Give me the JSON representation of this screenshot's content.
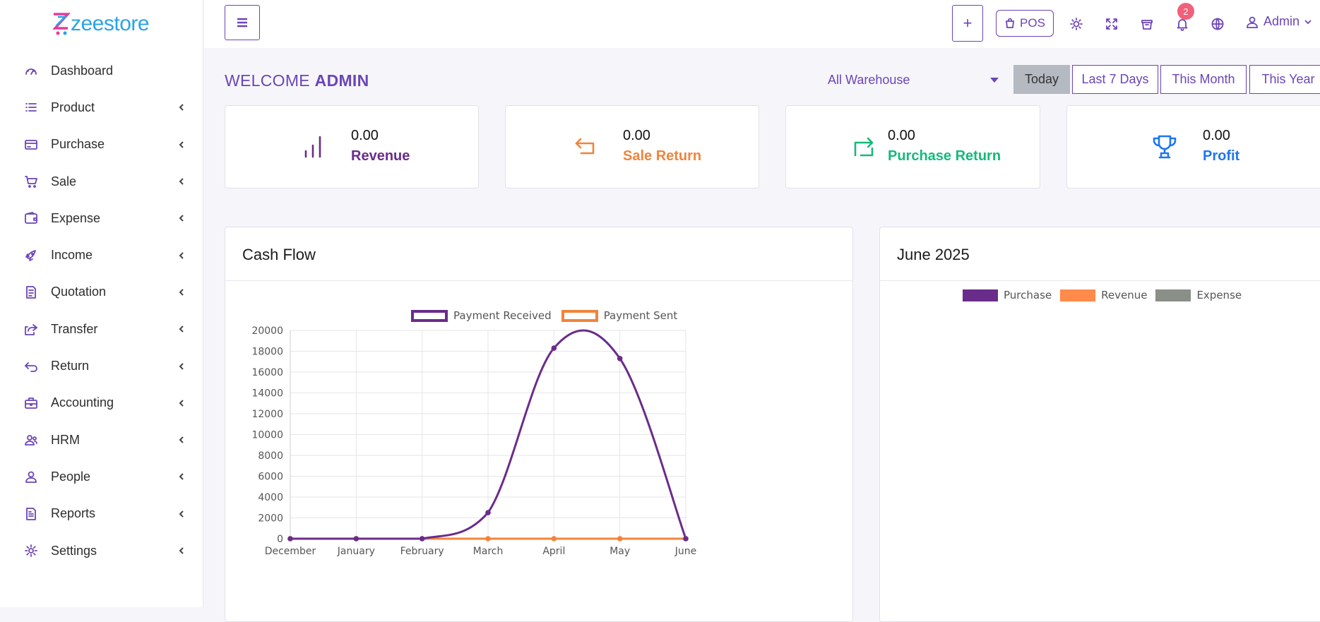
{
  "brand": {
    "logo_text": "zeestore"
  },
  "sidebar": {
    "items": [
      {
        "label": "Dashboard",
        "icon": "gauge-icon",
        "chevron": false
      },
      {
        "label": "Product",
        "icon": "list-icon",
        "chevron": true
      },
      {
        "label": "Purchase",
        "icon": "card-icon",
        "chevron": true
      },
      {
        "label": "Sale",
        "icon": "cart-icon",
        "chevron": true
      },
      {
        "label": "Expense",
        "icon": "wallet-icon",
        "chevron": true
      },
      {
        "label": "Income",
        "icon": "rocket-icon",
        "chevron": true
      },
      {
        "label": "Quotation",
        "icon": "document-icon",
        "chevron": true
      },
      {
        "label": "Transfer",
        "icon": "share-icon",
        "chevron": true
      },
      {
        "label": "Return",
        "icon": "return-icon",
        "chevron": true
      },
      {
        "label": "Accounting",
        "icon": "briefcase-icon",
        "chevron": true
      },
      {
        "label": "HRM",
        "icon": "team-icon",
        "chevron": true
      },
      {
        "label": "People",
        "icon": "user-icon",
        "chevron": true
      },
      {
        "label": "Reports",
        "icon": "report-icon",
        "chevron": true
      },
      {
        "label": "Settings",
        "icon": "gear-icon",
        "chevron": true
      }
    ]
  },
  "topbar": {
    "plus_label": "+",
    "pos_label": "POS",
    "notifications_count": "2",
    "user_name": "Admin"
  },
  "welcome": {
    "prefix": "WELCOME",
    "name": "ADMIN"
  },
  "filters": {
    "warehouse": "All Warehouse",
    "periods": [
      "Today",
      "Last 7 Days",
      "This Month",
      "This Year"
    ],
    "active_period": "Today"
  },
  "stats": [
    {
      "value": "0.00",
      "label": "Revenue",
      "color": "#6a2c8a",
      "icon": "bar-chart-icon"
    },
    {
      "value": "0.00",
      "label": "Sale Return",
      "color": "#f0843c",
      "icon": "return-arrow-icon"
    },
    {
      "value": "0.00",
      "label": "Purchase Return",
      "color": "#16b97a",
      "icon": "refresh-icon"
    },
    {
      "value": "0.00",
      "label": "Profit",
      "color": "#1f76f0",
      "icon": "trophy-icon"
    }
  ],
  "cash_flow": {
    "title": "Cash Flow",
    "legend": [
      "Payment Received",
      "Payment Sent"
    ]
  },
  "month_panel": {
    "title": "June 2025",
    "legend": [
      "Purchase",
      "Revenue",
      "Expense"
    ],
    "legend_colors": [
      "#6a2c8a",
      "#ff8a4a",
      "#8a8f88"
    ]
  },
  "chart_data": {
    "type": "line",
    "title": "Cash Flow",
    "x": [
      "December",
      "January",
      "February",
      "March",
      "April",
      "May",
      "June"
    ],
    "ylim": [
      0,
      20000
    ],
    "yticks": [
      0,
      2000,
      4000,
      6000,
      8000,
      10000,
      12000,
      14000,
      16000,
      18000,
      20000
    ],
    "grid": true,
    "legend_position": "top",
    "series": [
      {
        "name": "Payment Received",
        "color": "#6a2c8a",
        "values": [
          0,
          0,
          0,
          2500,
          18300,
          17300,
          0
        ]
      },
      {
        "name": "Payment Sent",
        "color": "#f0843c",
        "values": [
          0,
          0,
          0,
          0,
          0,
          0,
          0
        ]
      }
    ]
  }
}
